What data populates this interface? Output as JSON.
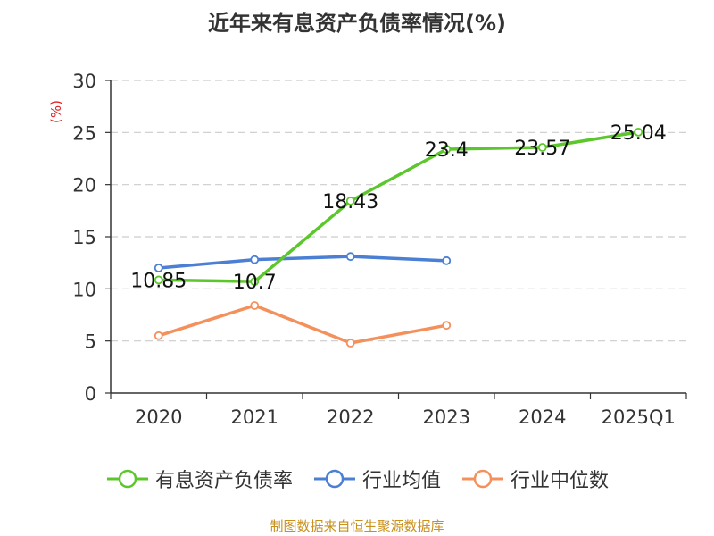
{
  "chart_data": {
    "type": "line",
    "title": "近年来有息资产负债率情况(%)",
    "ylabel": "(%)",
    "xlabel": "",
    "categories": [
      "2020",
      "2021",
      "2022",
      "2023",
      "2024",
      "2025Q1"
    ],
    "ylim": [
      0,
      30
    ],
    "yticks": [
      0,
      5,
      10,
      15,
      20,
      25,
      30
    ],
    "grid": true,
    "legend_position": "bottom",
    "series": [
      {
        "name": "有息资产负债率",
        "color": "#5cc72c",
        "values": [
          10.85,
          10.7,
          18.43,
          23.4,
          23.57,
          25.04
        ],
        "labels": [
          "10.85",
          "10.7",
          "18.43",
          "23.4",
          "23.57",
          "25.04"
        ]
      },
      {
        "name": "行业均值",
        "color": "#4a7fd4",
        "values": [
          12.0,
          12.8,
          13.1,
          12.7,
          null,
          null
        ]
      },
      {
        "name": "行业中位数",
        "color": "#f4905c",
        "values": [
          5.5,
          8.4,
          4.8,
          6.5,
          null,
          null
        ]
      }
    ]
  },
  "footer": {
    "source": "制图数据来自恒生聚源数据库"
  },
  "colors": {
    "axis": "#333333",
    "grid": "#cccccc",
    "ylabel": "#e02020",
    "footer": "#c8901c"
  }
}
